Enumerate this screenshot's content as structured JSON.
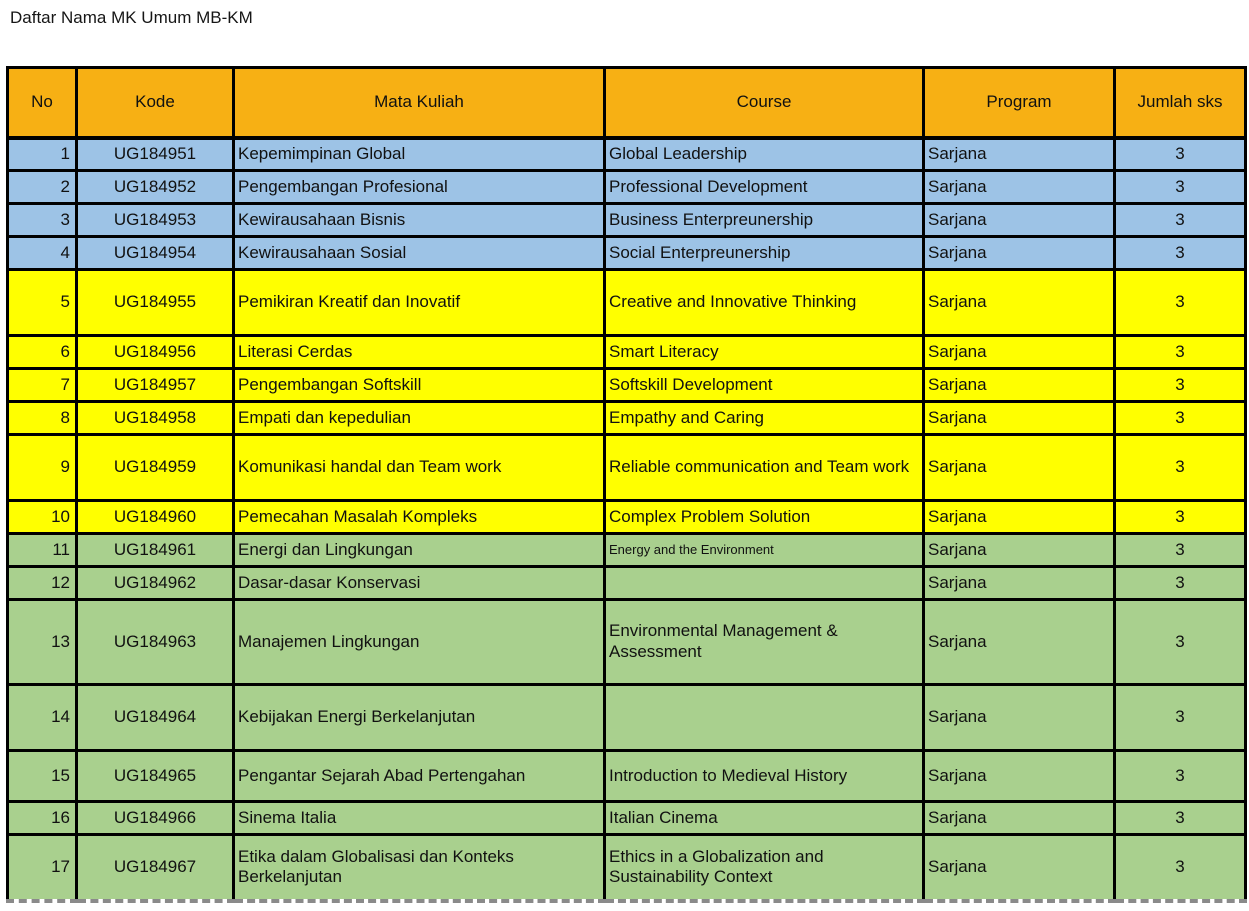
{
  "title": "Daftar Nama MK Umum MB-KM",
  "colors": {
    "header_fill": "#F7B014",
    "group_blue": "#9DC3E6",
    "group_yellow": "#FFFF00",
    "group_green": "#A9D08E",
    "border": "#000000"
  },
  "table": {
    "columns": [
      "No",
      "Kode",
      "Mata Kuliah",
      "Course",
      "Program",
      "Jumlah sks"
    ],
    "rows": [
      {
        "no": "1",
        "kode": "UG184951",
        "mata_kuliah": "Kepemimpinan Global",
        "course": "Global Leadership",
        "program": "Sarjana",
        "sks": "3",
        "group": "blue"
      },
      {
        "no": "2",
        "kode": "UG184952",
        "mata_kuliah": "Pengembangan Profesional",
        "course": "Professional Development",
        "program": "Sarjana",
        "sks": "3",
        "group": "blue"
      },
      {
        "no": "3",
        "kode": "UG184953",
        "mata_kuliah": "Kewirausahaan Bisnis",
        "course": "Business Enterpreunership",
        "program": "Sarjana",
        "sks": "3",
        "group": "blue"
      },
      {
        "no": "4",
        "kode": "UG184954",
        "mata_kuliah": "Kewirausahaan Sosial",
        "course": "Social Enterpreunership",
        "program": "Sarjana",
        "sks": "3",
        "group": "blue"
      },
      {
        "no": "5",
        "kode": "UG184955",
        "mata_kuliah": "Pemikiran Kreatif dan Inovatif",
        "course": "Creative and Innovative Thinking",
        "program": "Sarjana",
        "sks": "3",
        "group": "yellow"
      },
      {
        "no": "6",
        "kode": "UG184956",
        "mata_kuliah": "Literasi Cerdas",
        "course": "Smart Literacy",
        "program": "Sarjana",
        "sks": "3",
        "group": "yellow"
      },
      {
        "no": "7",
        "kode": "UG184957",
        "mata_kuliah": "Pengembangan Softskill",
        "course": "Softskill Development",
        "program": "Sarjana",
        "sks": "3",
        "group": "yellow"
      },
      {
        "no": "8",
        "kode": "UG184958",
        "mata_kuliah": "Empati dan kepedulian",
        "course": "Empathy and Caring",
        "program": "Sarjana",
        "sks": "3",
        "group": "yellow"
      },
      {
        "no": "9",
        "kode": "UG184959",
        "mata_kuliah": "Komunikasi handal dan Team work",
        "course": "Reliable communication and Team work",
        "program": "Sarjana",
        "sks": "3",
        "group": "yellow"
      },
      {
        "no": "10",
        "kode": "UG184960",
        "mata_kuliah": "Pemecahan Masalah Kompleks",
        "course": "Complex Problem Solution",
        "program": "Sarjana",
        "sks": "3",
        "group": "yellow"
      },
      {
        "no": "11",
        "kode": "UG184961",
        "mata_kuliah": "Energi dan Lingkungan",
        "course": "Energy and the Environment",
        "program": "Sarjana",
        "sks": "3",
        "group": "green",
        "course_small": true
      },
      {
        "no": "12",
        "kode": "UG184962",
        "mata_kuliah": "Dasar-dasar Konservasi",
        "course": "",
        "program": "Sarjana",
        "sks": "3",
        "group": "green"
      },
      {
        "no": "13",
        "kode": "UG184963",
        "mata_kuliah": "Manajemen Lingkungan",
        "course": "Environmental Management & Assessment",
        "program": "Sarjana",
        "sks": "3",
        "group": "green"
      },
      {
        "no": "14",
        "kode": "UG184964",
        "mata_kuliah": "Kebijakan Energi Berkelanjutan",
        "course": "",
        "program": "Sarjana",
        "sks": "3",
        "group": "green"
      },
      {
        "no": "15",
        "kode": "UG184965",
        "mata_kuliah": "Pengantar Sejarah Abad Pertengahan",
        "course": "Introduction to Medieval History",
        "program": "Sarjana",
        "sks": "3",
        "group": "green"
      },
      {
        "no": "16",
        "kode": "UG184966",
        "mata_kuliah": "Sinema Italia",
        "course": "Italian Cinema",
        "program": "Sarjana",
        "sks": "3",
        "group": "green"
      },
      {
        "no": "17",
        "kode": "UG184967",
        "mata_kuliah": "Etika dalam Globalisasi dan Konteks Berkelanjutan",
        "course": "Ethics in a Globalization and Sustainability Context",
        "program": "Sarjana",
        "sks": "3",
        "group": "green"
      }
    ]
  }
}
